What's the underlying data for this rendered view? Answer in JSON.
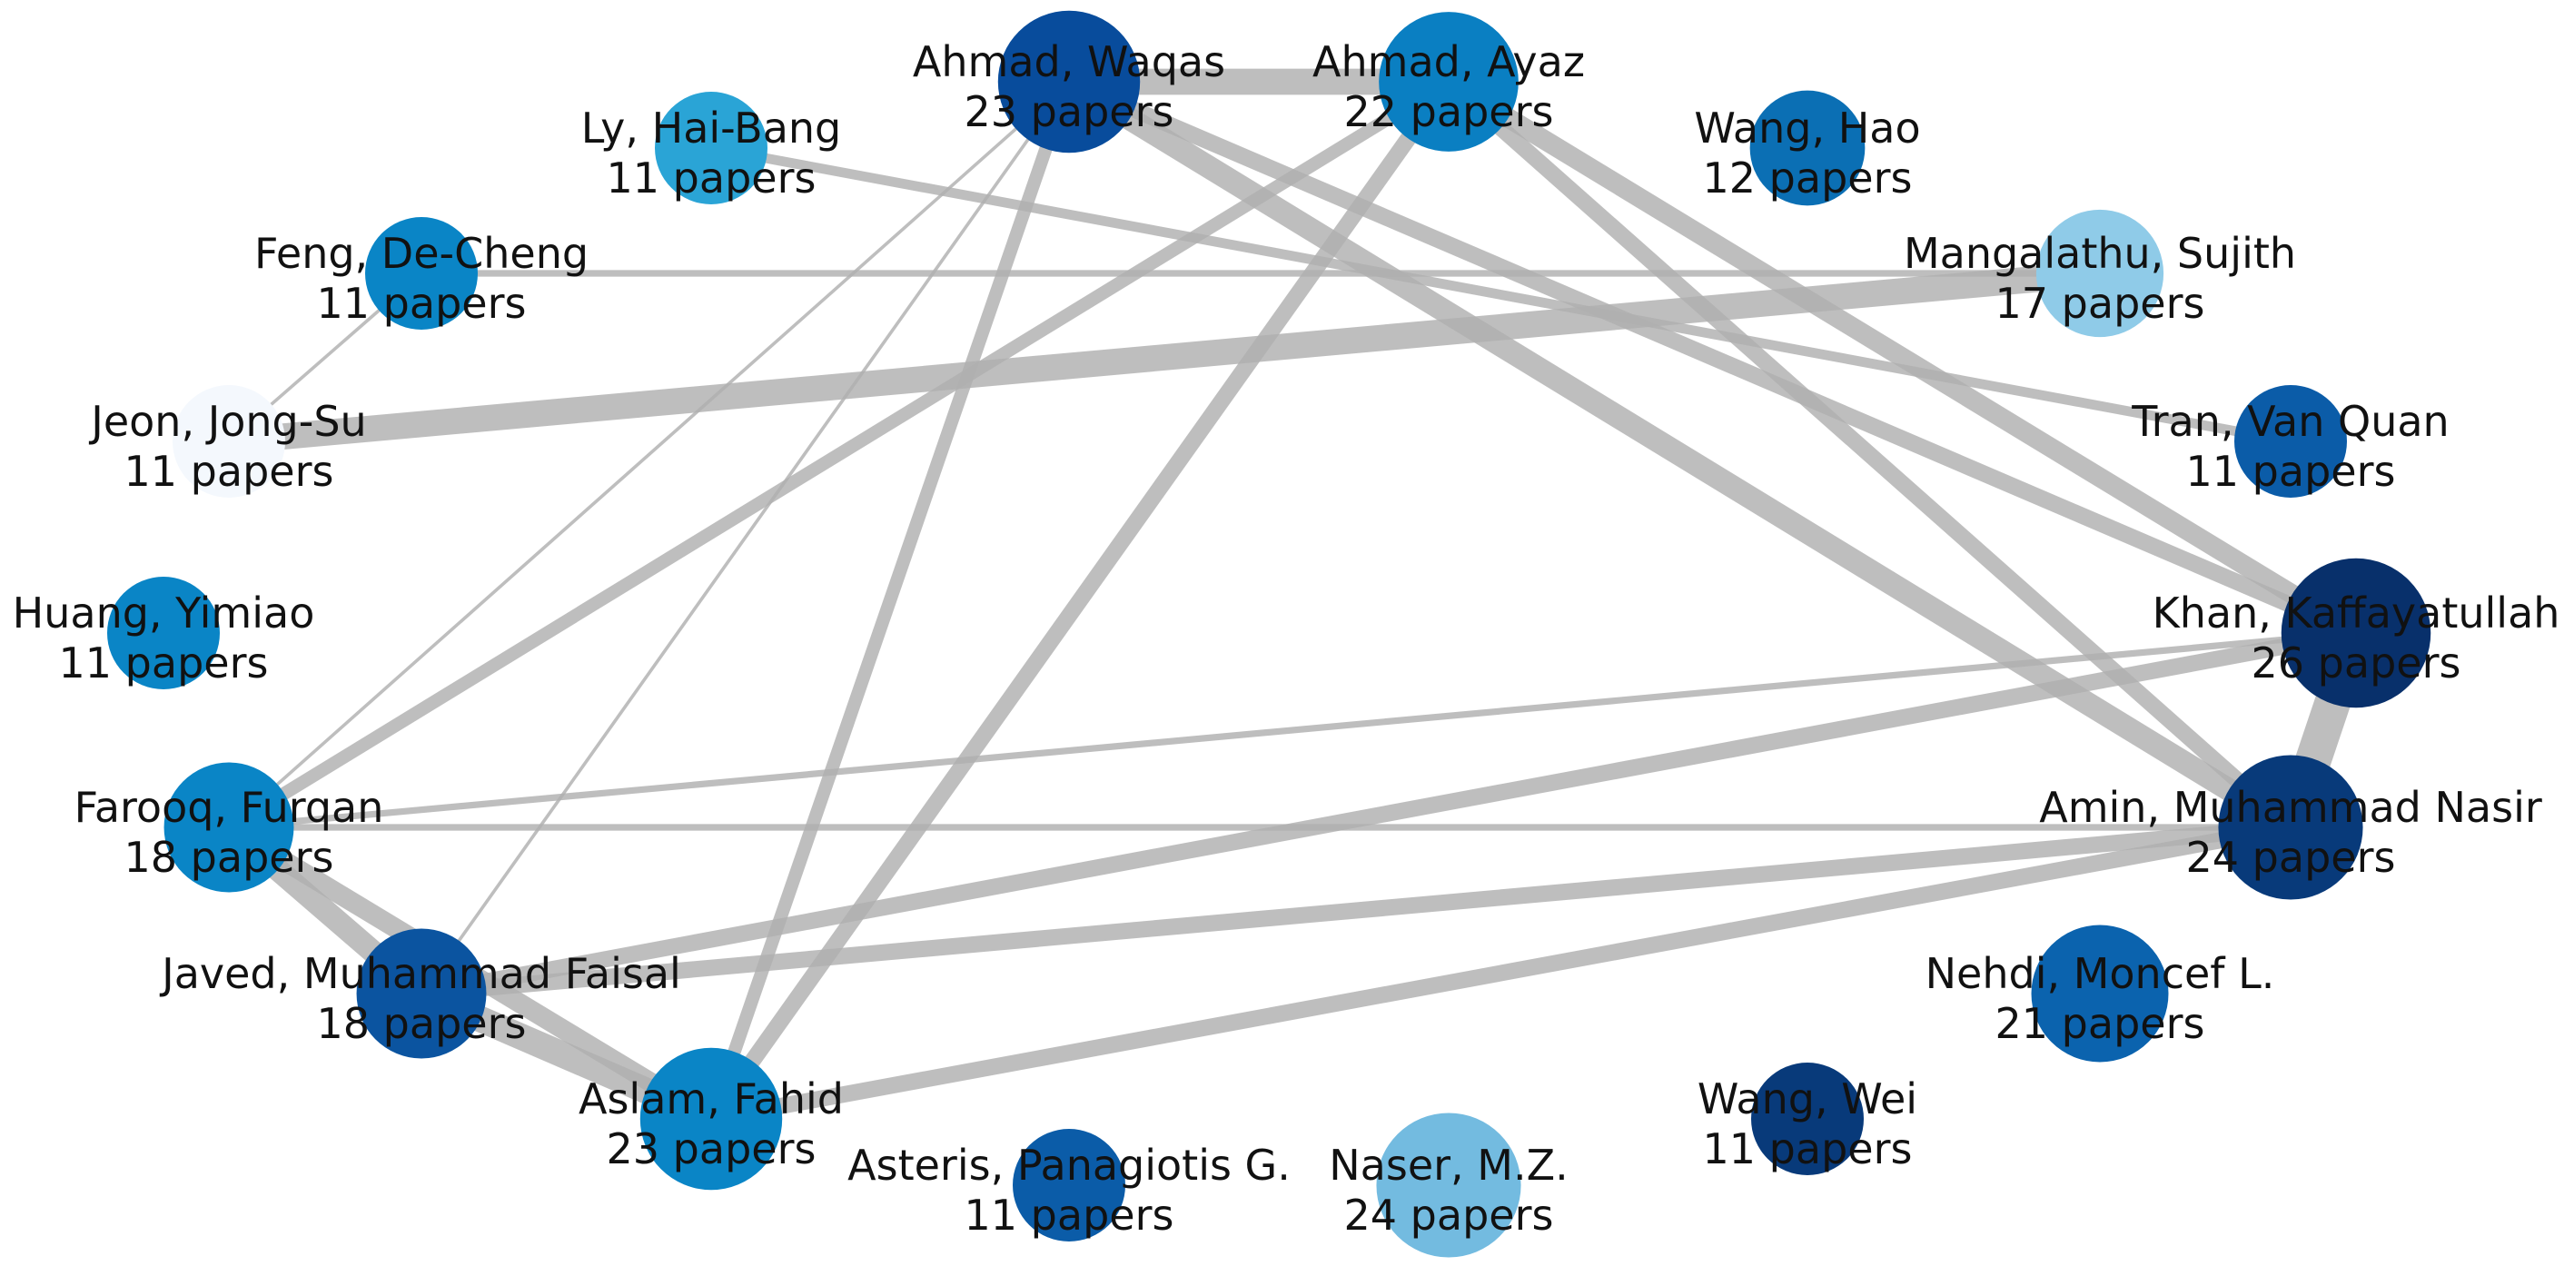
{
  "graph": {
    "type": "co-authorship-network",
    "node_color_scale": "blues",
    "edge_color": "#b0b0b0",
    "nodes": [
      {
        "id": "ahmad_waqas",
        "name": "Ahmad, Waqas",
        "papers_label": "23 papers",
        "papers": 23,
        "color": "#084c9c"
      },
      {
        "id": "ahmad_ayaz",
        "name": "Ahmad, Ayaz",
        "papers_label": "22 papers",
        "papers": 22,
        "color": "#0a7fc2"
      },
      {
        "id": "ly_haibang",
        "name": "Ly, Hai-Bang",
        "papers_label": "11 papers",
        "papers": 11,
        "color": "#2aa4d6"
      },
      {
        "id": "wang_hao",
        "name": "Wang, Hao",
        "papers_label": "12 papers",
        "papers": 12,
        "color": "#0b6fb4"
      },
      {
        "id": "feng_decheng",
        "name": "Feng, De-Cheng",
        "papers_label": "11 papers",
        "papers": 11,
        "color": "#0a85c6"
      },
      {
        "id": "mangalathu_sujith",
        "name": "Mangalathu, Sujith",
        "papers_label": "17 papers",
        "papers": 17,
        "color": "#8fcbe8"
      },
      {
        "id": "jeon_jongsu",
        "name": "Jeon, Jong-Su",
        "papers_label": "11 papers",
        "papers": 11,
        "color": "#f4f8fd"
      },
      {
        "id": "tran_vanquan",
        "name": "Tran, Van Quan",
        "papers_label": "11 papers",
        "papers": 11,
        "color": "#0b5ca8"
      },
      {
        "id": "huang_yimiao",
        "name": "Huang, Yimiao",
        "papers_label": "11 papers",
        "papers": 11,
        "color": "#0a85c6"
      },
      {
        "id": "khan_kaffayatullah",
        "name": "Khan, Kaffayatullah",
        "papers_label": "26 papers",
        "papers": 26,
        "color": "#08306b"
      },
      {
        "id": "farooq_furqan",
        "name": "Farooq, Furqan",
        "papers_label": "18 papers",
        "papers": 18,
        "color": "#0a85c6"
      },
      {
        "id": "amin_muhammad_nasir",
        "name": "Amin, Muhammad Nasir",
        "papers_label": "24 papers",
        "papers": 24,
        "color": "#083a7a"
      },
      {
        "id": "javed_muhammad_faisal",
        "name": "Javed, Muhammad Faisal",
        "papers_label": "18 papers",
        "papers": 18,
        "color": "#0b54a0"
      },
      {
        "id": "nehdi_moncef",
        "name": "Nehdi, Moncef L.",
        "papers_label": "21 papers",
        "papers": 21,
        "color": "#0b63ae"
      },
      {
        "id": "aslam_fahid",
        "name": "Aslam, Fahid",
        "papers_label": "23 papers",
        "papers": 23,
        "color": "#0a85c6"
      },
      {
        "id": "wang_wei",
        "name": "Wang, Wei",
        "papers_label": "11 papers",
        "papers": 11,
        "color": "#083a7a"
      },
      {
        "id": "asteris_panagiotis",
        "name": "Asteris, Panagiotis G.",
        "papers_label": "11 papers",
        "papers": 11,
        "color": "#0b5ca8"
      },
      {
        "id": "naser_mz",
        "name": "Naser, M.Z.",
        "papers_label": "24 papers",
        "papers": 24,
        "color": "#73bbe0"
      }
    ],
    "edges": [
      {
        "source": "ahmad_waqas",
        "target": "ahmad_ayaz",
        "weight": 8
      },
      {
        "source": "ahmad_waqas",
        "target": "khan_kaffayatullah",
        "weight": 5
      },
      {
        "source": "ahmad_waqas",
        "target": "amin_muhammad_nasir",
        "weight": 7
      },
      {
        "source": "ahmad_waqas",
        "target": "aslam_fahid",
        "weight": 4
      },
      {
        "source": "ahmad_waqas",
        "target": "farooq_furqan",
        "weight": 1
      },
      {
        "source": "ahmad_waqas",
        "target": "javed_muhammad_faisal",
        "weight": 1
      },
      {
        "source": "ahmad_ayaz",
        "target": "khan_kaffayatullah",
        "weight": 6
      },
      {
        "source": "ahmad_ayaz",
        "target": "amin_muhammad_nasir",
        "weight": 5
      },
      {
        "source": "ahmad_ayaz",
        "target": "aslam_fahid",
        "weight": 5
      },
      {
        "source": "ahmad_ayaz",
        "target": "farooq_furqan",
        "weight": 4
      },
      {
        "source": "ly_haibang",
        "target": "tran_vanquan",
        "weight": 3
      },
      {
        "source": "feng_decheng",
        "target": "mangalathu_sujith",
        "weight": 2
      },
      {
        "source": "feng_decheng",
        "target": "jeon_jongsu",
        "weight": 1
      },
      {
        "source": "mangalathu_sujith",
        "target": "jeon_jongsu",
        "weight": 8
      },
      {
        "source": "khan_kaffayatullah",
        "target": "amin_muhammad_nasir",
        "weight": 11
      },
      {
        "source": "khan_kaffayatullah",
        "target": "farooq_furqan",
        "weight": 2
      },
      {
        "source": "khan_kaffayatullah",
        "target": "javed_muhammad_faisal",
        "weight": 5
      },
      {
        "source": "amin_muhammad_nasir",
        "target": "farooq_furqan",
        "weight": 2
      },
      {
        "source": "amin_muhammad_nasir",
        "target": "javed_muhammad_faisal",
        "weight": 5
      },
      {
        "source": "amin_muhammad_nasir",
        "target": "aslam_fahid",
        "weight": 5
      },
      {
        "source": "farooq_furqan",
        "target": "javed_muhammad_faisal",
        "weight": 7
      },
      {
        "source": "farooq_furqan",
        "target": "aslam_fahid",
        "weight": 6
      },
      {
        "source": "javed_muhammad_faisal",
        "target": "aslam_fahid",
        "weight": 8
      }
    ]
  }
}
